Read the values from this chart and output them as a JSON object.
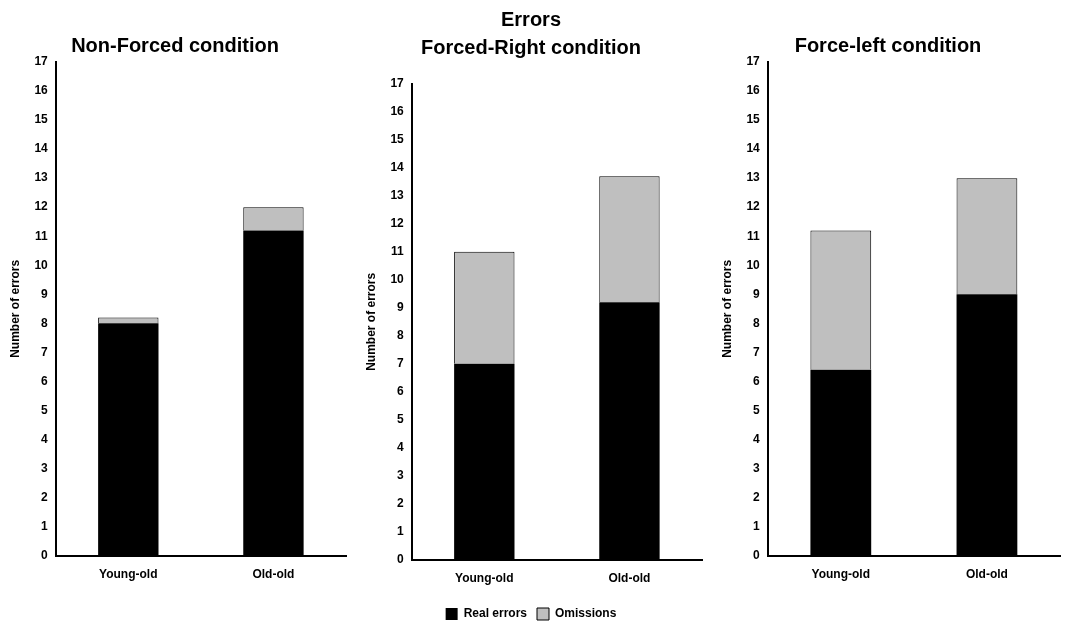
{
  "chart_data": [
    {
      "type": "bar",
      "title": "Non-Forced condition",
      "ylabel": "Number of errors",
      "categories": [
        "Young-old",
        "Old-old"
      ],
      "stacked": true,
      "series": [
        {
          "color": "#000000",
          "values": [
            8.0,
            11.2
          ]
        },
        {
          "color": "#bfbfbf",
          "values": [
            0.2,
            0.8
          ]
        }
      ],
      "ylim": [
        0,
        17
      ],
      "yticks": [
        0,
        1,
        2,
        3,
        4,
        5,
        6,
        7,
        8,
        9,
        10,
        11,
        12,
        13,
        14,
        15,
        16,
        17
      ],
      "grid": false,
      "legend": false
    },
    {
      "type": "bar",
      "title": "Errors",
      "subtitle": "Forced-Right condition",
      "ylabel": "Number of errors",
      "categories": [
        "Young-old",
        "Old-old"
      ],
      "stacked": true,
      "series": [
        {
          "name": "Real errors",
          "color": "#000000",
          "values": [
            7.0,
            9.2
          ]
        },
        {
          "name": "Omissions",
          "color": "#bfbfbf",
          "values": [
            4.0,
            4.5
          ]
        }
      ],
      "ylim": [
        0,
        17
      ],
      "yticks": [
        0,
        1,
        2,
        3,
        4,
        5,
        6,
        7,
        8,
        9,
        10,
        11,
        12,
        13,
        14,
        15,
        16,
        17
      ],
      "grid": false,
      "legend": "bottom"
    },
    {
      "type": "bar",
      "title": "Force-left condition",
      "ylabel": "Number of errors",
      "categories": [
        "Young-old",
        "Old-old"
      ],
      "stacked": true,
      "series": [
        {
          "color": "#000000",
          "values": [
            6.4,
            9.0
          ]
        },
        {
          "color": "#bfbfbf",
          "values": [
            4.8,
            4.0
          ]
        }
      ],
      "ylim": [
        0,
        17
      ],
      "yticks": [
        0,
        1,
        2,
        3,
        4,
        5,
        6,
        7,
        8,
        9,
        10,
        11,
        12,
        13,
        14,
        15,
        16,
        17
      ],
      "grid": false,
      "legend": false
    }
  ]
}
